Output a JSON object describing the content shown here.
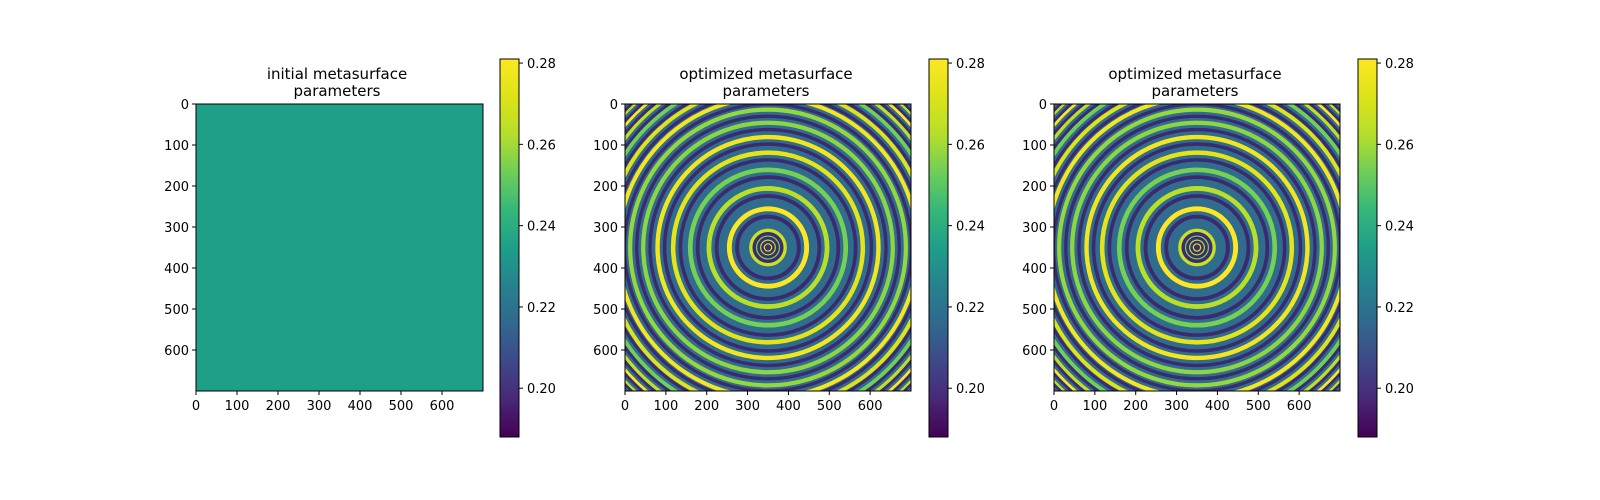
{
  "chart_data": [
    {
      "type": "heatmap",
      "title_lines": [
        "initial metasurface",
        "parameters"
      ],
      "xlim": [
        0,
        700
      ],
      "ylim": [
        700,
        0
      ],
      "xticks": [
        0,
        100,
        200,
        300,
        400,
        500,
        600
      ],
      "yticks": [
        0,
        100,
        200,
        300,
        400,
        500,
        600
      ],
      "colormap": "viridis",
      "clim": [
        0.188,
        0.281
      ],
      "colorbar_ticks": [
        0.2,
        0.22,
        0.24,
        0.26,
        0.28
      ],
      "pattern": "uniform",
      "uniform_value": 0.235
    },
    {
      "type": "heatmap",
      "title_lines": [
        "optimized metasurface",
        "parameters"
      ],
      "xlim": [
        0,
        700
      ],
      "ylim": [
        700,
        0
      ],
      "xticks": [
        0,
        100,
        200,
        300,
        400,
        500,
        600
      ],
      "yticks": [
        0,
        100,
        200,
        300,
        400,
        500,
        600
      ],
      "colormap": "viridis",
      "clim": [
        0.188,
        0.281
      ],
      "colorbar_ticks": [
        0.2,
        0.22,
        0.24,
        0.26,
        0.28
      ],
      "pattern": "concentric rings",
      "ring_center": [
        350,
        350
      ]
    },
    {
      "type": "heatmap",
      "title_lines": [
        "optimized metasurface",
        "parameters"
      ],
      "xlim": [
        0,
        700
      ],
      "ylim": [
        700,
        0
      ],
      "xticks": [
        0,
        100,
        200,
        300,
        400,
        500,
        600
      ],
      "yticks": [
        0,
        100,
        200,
        300,
        400,
        500,
        600
      ],
      "colormap": "viridis",
      "clim": [
        0.188,
        0.281
      ],
      "colorbar_ticks": [
        0.2,
        0.22,
        0.24,
        0.26,
        0.28
      ],
      "pattern": "concentric rings",
      "ring_center": [
        350,
        350
      ]
    }
  ]
}
